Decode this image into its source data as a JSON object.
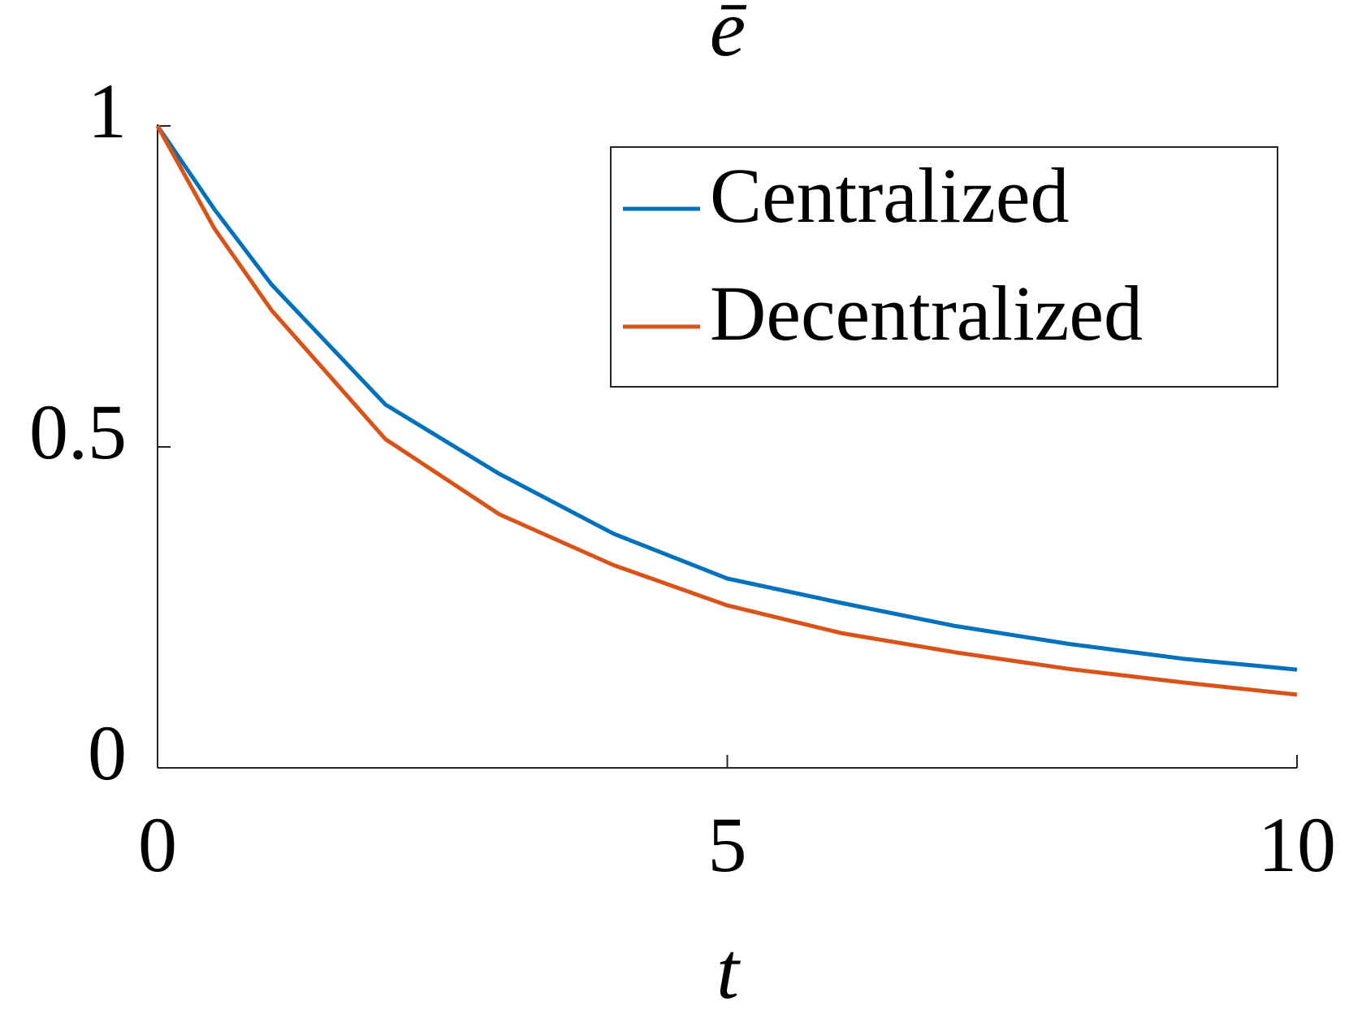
{
  "chart_data": {
    "type": "line",
    "title": "ē",
    "x_label": "t",
    "x": [
      0,
      0.5,
      1,
      2,
      3,
      4,
      5,
      6,
      7,
      8,
      9,
      10
    ],
    "series": [
      {
        "name": "Centralized",
        "color": "#0072bd",
        "values": [
          1,
          0.87,
          0.753,
          0.566,
          0.458,
          0.365,
          0.295,
          0.257,
          0.221,
          0.193,
          0.17,
          0.153
        ]
      },
      {
        "name": "Decentralized",
        "color": "#d95319",
        "values": [
          1,
          0.84,
          0.713,
          0.512,
          0.395,
          0.316,
          0.253,
          0.21,
          0.18,
          0.154,
          0.133,
          0.114
        ]
      }
    ],
    "xlim": [
      0,
      10
    ],
    "ylim": [
      0,
      1
    ],
    "xticks": [
      0,
      5,
      10
    ],
    "yticks": [
      0,
      0.5,
      1
    ],
    "legend": "upper right"
  }
}
